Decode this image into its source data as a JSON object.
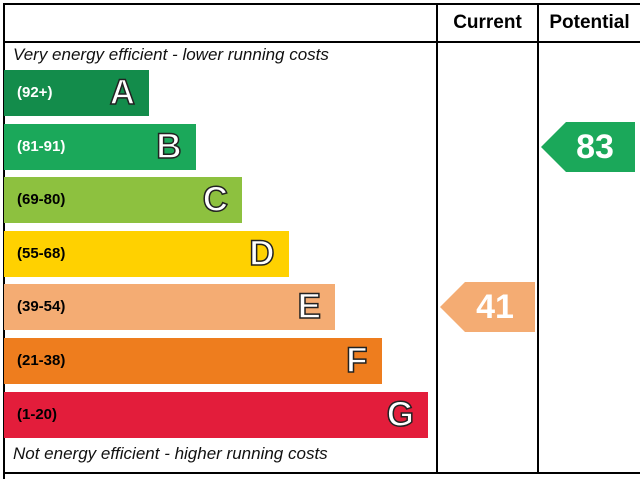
{
  "headers": {
    "current": "Current",
    "potential": "Potential"
  },
  "captions": {
    "top": "Very energy efficient - lower running costs",
    "bottom": "Not energy efficient - higher running costs"
  },
  "chart_data": {
    "type": "bar",
    "bands": [
      {
        "letter": "A",
        "range": "(92+)",
        "color": "#138c4b",
        "text_color": "#ffffff"
      },
      {
        "letter": "B",
        "range": "(81-91)",
        "color": "#1ba85a",
        "text_color": "#ffffff"
      },
      {
        "letter": "C",
        "range": "(69-80)",
        "color": "#8dc13f",
        "text_color": "#000000"
      },
      {
        "letter": "D",
        "range": "(55-68)",
        "color": "#ffd100",
        "text_color": "#000000"
      },
      {
        "letter": "E",
        "range": "(39-54)",
        "color": "#f4ac73",
        "text_color": "#000000"
      },
      {
        "letter": "F",
        "range": "(21-38)",
        "color": "#ee7d1e",
        "text_color": "#000000"
      },
      {
        "letter": "G",
        "range": "(1-20)",
        "color": "#e31d3b",
        "text_color": "#000000"
      }
    ],
    "current": {
      "value": 41,
      "band": "E",
      "color": "#f4ac73"
    },
    "potential": {
      "value": 83,
      "band": "B",
      "color": "#1ba85a"
    }
  }
}
